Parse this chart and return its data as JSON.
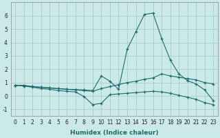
{
  "xlabel": "Humidex (Indice chaleur)",
  "xlim": [
    -0.5,
    23.5
  ],
  "ylim": [
    -1.5,
    7.0
  ],
  "yticks": [
    -1,
    0,
    1,
    2,
    3,
    4,
    5,
    6
  ],
  "xticks": [
    0,
    1,
    2,
    3,
    4,
    5,
    6,
    7,
    8,
    9,
    10,
    11,
    12,
    13,
    14,
    15,
    16,
    17,
    18,
    19,
    20,
    21,
    22,
    23
  ],
  "background_color": "#cce9e9",
  "grid_color": "#aacccc",
  "line_color": "#1a6b6b",
  "curves": {
    "curve1": {
      "x": [
        0,
        1,
        2,
        3,
        4,
        5,
        6,
        7,
        8,
        9,
        10,
        11,
        12,
        13,
        14,
        15,
        16,
        17,
        18,
        19,
        20,
        21,
        22,
        23
      ],
      "y": [
        0.8,
        0.8,
        0.7,
        0.65,
        0.6,
        0.55,
        0.5,
        0.48,
        0.45,
        0.4,
        1.5,
        1.1,
        0.5,
        3.5,
        4.8,
        6.1,
        6.2,
        4.3,
        2.7,
        1.65,
        1.15,
        0.9,
        0.45,
        -0.35
      ]
    },
    "curve2": {
      "x": [
        0,
        1,
        2,
        3,
        4,
        5,
        6,
        7,
        8,
        9,
        10,
        11,
        12,
        13,
        14,
        15,
        16,
        17,
        18,
        19,
        20,
        21,
        22,
        23
      ],
      "y": [
        0.8,
        0.75,
        0.7,
        0.65,
        0.6,
        0.55,
        0.5,
        0.45,
        0.4,
        0.35,
        0.55,
        0.7,
        0.85,
        1.0,
        1.1,
        1.25,
        1.35,
        1.65,
        1.5,
        1.4,
        1.3,
        1.2,
        1.0,
        0.9
      ]
    },
    "curve3": {
      "x": [
        0,
        1,
        2,
        3,
        4,
        5,
        6,
        7,
        8,
        9,
        10,
        11,
        12,
        13,
        14,
        15,
        16,
        17,
        18,
        19,
        20,
        21,
        22,
        23
      ],
      "y": [
        0.8,
        0.75,
        0.65,
        0.55,
        0.5,
        0.4,
        0.35,
        0.3,
        -0.05,
        -0.65,
        -0.55,
        0.1,
        0.15,
        0.2,
        0.25,
        0.3,
        0.35,
        0.3,
        0.2,
        0.05,
        -0.1,
        -0.25,
        -0.5,
        -0.65
      ]
    }
  },
  "xlabel_fontsize": 6.5,
  "tick_fontsize": 5.5
}
